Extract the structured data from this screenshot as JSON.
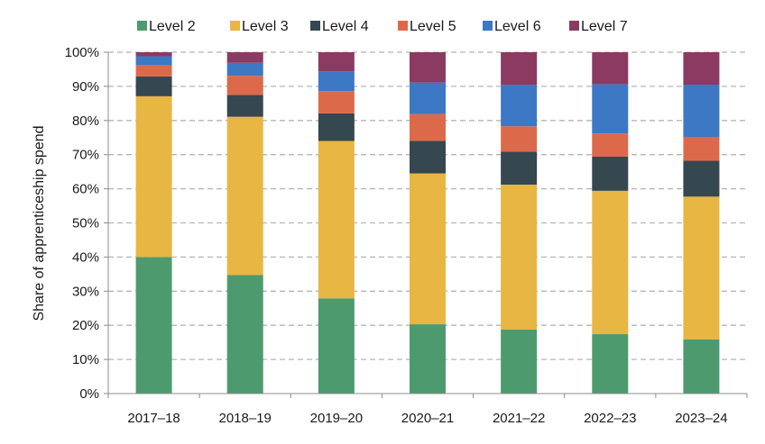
{
  "chart_data": {
    "type": "bar",
    "stacked": true,
    "percent": true,
    "title": "",
    "xlabel": "",
    "ylabel": "Share of apprenticeship spend",
    "ylim": [
      0,
      100
    ],
    "yticks": [
      "0%",
      "10%",
      "20%",
      "30%",
      "40%",
      "50%",
      "60%",
      "70%",
      "80%",
      "90%",
      "100%"
    ],
    "grid": "horizontal dashed",
    "legend_position": "top",
    "categories": [
      "2017–18",
      "2018–19",
      "2019–20",
      "2020–21",
      "2021–22",
      "2022–23",
      "2023–24"
    ],
    "series": [
      {
        "name": "Level 2",
        "color": "#4e9a6f",
        "values": [
          40.0,
          34.7,
          27.9,
          20.3,
          18.8,
          17.4,
          15.9
        ]
      },
      {
        "name": "Level 3",
        "color": "#e8b642",
        "values": [
          47.1,
          46.4,
          46.1,
          44.2,
          42.4,
          42.0,
          41.8
        ]
      },
      {
        "name": "Level 4",
        "color": "#35474f",
        "values": [
          5.8,
          6.4,
          8.1,
          9.5,
          9.7,
          10.0,
          10.5
        ]
      },
      {
        "name": "Level 5",
        "color": "#dc6a4a",
        "values": [
          3.3,
          5.6,
          6.5,
          7.9,
          7.4,
          6.8,
          7.0
        ]
      },
      {
        "name": "Level 6",
        "color": "#3c78c4",
        "values": [
          2.6,
          3.8,
          5.8,
          9.2,
          12.1,
          14.4,
          15.3
        ]
      },
      {
        "name": "Level 7",
        "color": "#8b3a62",
        "values": [
          1.2,
          3.1,
          5.6,
          8.9,
          9.6,
          9.4,
          9.5
        ]
      }
    ]
  }
}
